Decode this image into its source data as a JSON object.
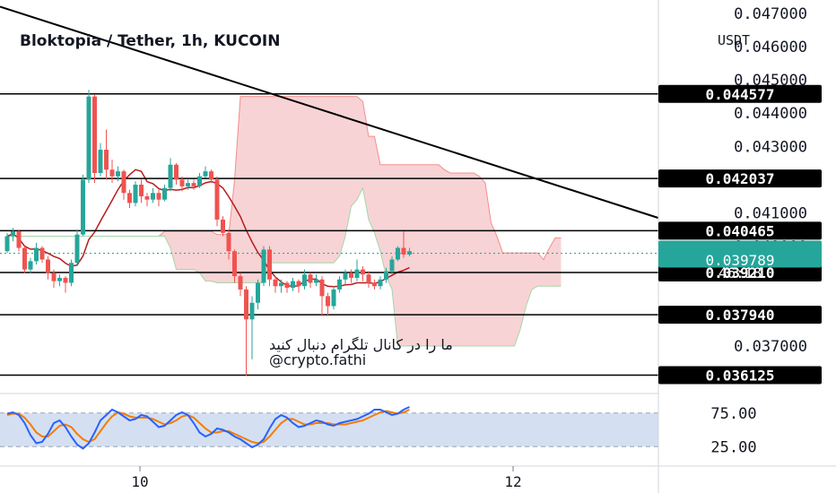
{
  "chart_data": {
    "type": "candlestick",
    "title": "Bloktopia / Tether, 1h, KUCOIN",
    "currency": "USDT",
    "y_ticks": [
      "0.047000",
      "0.046000",
      "0.045000",
      "0.044000",
      "0.043000",
      "0.041000",
      "0.040000",
      "0.037000"
    ],
    "ylim": [
      0.0356,
      0.0474
    ],
    "x_ticks": [
      "10",
      "12"
    ],
    "levels": [
      {
        "label": "0.044577",
        "value": 0.044577
      },
      {
        "label": "0.042037",
        "value": 0.042037
      },
      {
        "label": "0.040465",
        "value": 0.040465
      },
      {
        "label": "0.039210",
        "value": 0.03921
      },
      {
        "label": "0.037940",
        "value": 0.03794
      },
      {
        "label": "0.036125",
        "value": 0.036125
      }
    ],
    "current_price": {
      "label": "0.039789",
      "countdown": "46:18",
      "value": 0.039789
    },
    "trendline": {
      "from": 0.0472,
      "to": 0.04085
    },
    "candles": [
      [
        0.03985,
        0.0403,
        0.0404,
        0.0398
      ],
      [
        0.0403,
        0.04045,
        0.04055,
        0.04015
      ],
      [
        0.04045,
        0.03995,
        0.0405,
        0.03985
      ],
      [
        0.03995,
        0.0393,
        0.04,
        0.0392
      ],
      [
        0.0393,
        0.03955,
        0.03965,
        0.0392
      ],
      [
        0.03955,
        0.03995,
        0.0401,
        0.03945
      ],
      [
        0.03995,
        0.0396,
        0.04,
        0.0395
      ],
      [
        0.0396,
        0.0392,
        0.0397,
        0.039
      ],
      [
        0.0392,
        0.03895,
        0.0393,
        0.03875
      ],
      [
        0.03895,
        0.03905,
        0.03915,
        0.0388
      ],
      [
        0.03905,
        0.0389,
        0.0391,
        0.0386
      ],
      [
        0.0389,
        0.0395,
        0.0396,
        0.0388
      ],
      [
        0.0395,
        0.04035,
        0.0405,
        0.0394
      ],
      [
        0.04035,
        0.042,
        0.04215,
        0.0403
      ],
      [
        0.042,
        0.0445,
        0.0447,
        0.0419
      ],
      [
        0.0445,
        0.0422,
        0.04455,
        0.0419
      ],
      [
        0.0422,
        0.0429,
        0.0431,
        0.0421
      ],
      [
        0.0429,
        0.0423,
        0.0435,
        0.042
      ],
      [
        0.0423,
        0.0421,
        0.0426,
        0.0419
      ],
      [
        0.0421,
        0.04225,
        0.0424,
        0.04195
      ],
      [
        0.04225,
        0.0416,
        0.0423,
        0.0414
      ],
      [
        0.0416,
        0.0413,
        0.0417,
        0.04115
      ],
      [
        0.0413,
        0.04185,
        0.04195,
        0.0412
      ],
      [
        0.04185,
        0.0415,
        0.042,
        0.0413
      ],
      [
        0.0415,
        0.0414,
        0.0416,
        0.0412
      ],
      [
        0.0414,
        0.0416,
        0.04175,
        0.0413
      ],
      [
        0.0416,
        0.0414,
        0.0417,
        0.0412
      ],
      [
        0.0414,
        0.04175,
        0.04185,
        0.04135
      ],
      [
        0.04175,
        0.04245,
        0.04265,
        0.04165
      ],
      [
        0.04245,
        0.042,
        0.0425,
        0.04185
      ],
      [
        0.042,
        0.0418,
        0.0421,
        0.04165
      ],
      [
        0.0418,
        0.0419,
        0.042,
        0.0417
      ],
      [
        0.0419,
        0.0418,
        0.042,
        0.0417
      ],
      [
        0.0418,
        0.0421,
        0.0422,
        0.04175
      ],
      [
        0.0421,
        0.04225,
        0.0424,
        0.04205
      ],
      [
        0.04225,
        0.042,
        0.0423,
        0.0419
      ],
      [
        0.042,
        0.0408,
        0.0421,
        0.0406
      ],
      [
        0.0408,
        0.0404,
        0.0409,
        0.0403
      ],
      [
        0.0404,
        0.03985,
        0.0405,
        0.0396
      ],
      [
        0.03985,
        0.0391,
        0.0399,
        0.0389
      ],
      [
        0.0391,
        0.0387,
        0.0392,
        0.0385
      ],
      [
        0.0387,
        0.0378,
        0.0388,
        0.0361
      ],
      [
        0.0378,
        0.0383,
        0.0385,
        0.0366
      ],
      [
        0.0383,
        0.0389,
        0.039,
        0.0381
      ],
      [
        0.0389,
        0.0399,
        0.04,
        0.0388
      ],
      [
        0.0399,
        0.039,
        0.04,
        0.0388
      ],
      [
        0.039,
        0.0388,
        0.0391,
        0.0386
      ],
      [
        0.0388,
        0.0389,
        0.039,
        0.0386
      ],
      [
        0.0389,
        0.03875,
        0.03895,
        0.0386
      ],
      [
        0.03875,
        0.03895,
        0.03905,
        0.03865
      ],
      [
        0.03895,
        0.0388,
        0.039,
        0.0386
      ],
      [
        0.0388,
        0.03915,
        0.0393,
        0.0387
      ],
      [
        0.03915,
        0.0389,
        0.0392,
        0.03875
      ],
      [
        0.0389,
        0.039,
        0.03915,
        0.0388
      ],
      [
        0.039,
        0.0385,
        0.0391,
        0.0379
      ],
      [
        0.0385,
        0.0382,
        0.0386,
        0.0379
      ],
      [
        0.0382,
        0.0387,
        0.0388,
        0.0381
      ],
      [
        0.0387,
        0.039,
        0.0391,
        0.0386
      ],
      [
        0.039,
        0.0392,
        0.0393,
        0.03885
      ],
      [
        0.0392,
        0.03905,
        0.0393,
        0.0389
      ],
      [
        0.03905,
        0.0393,
        0.0396,
        0.03895
      ],
      [
        0.0393,
        0.03915,
        0.0394,
        0.03895
      ],
      [
        0.03915,
        0.0389,
        0.03925,
        0.03875
      ],
      [
        0.0389,
        0.0388,
        0.039,
        0.0387
      ],
      [
        0.0388,
        0.039,
        0.0391,
        0.0387
      ],
      [
        0.039,
        0.03925,
        0.03935,
        0.0389
      ],
      [
        0.03925,
        0.0396,
        0.0397,
        0.03915
      ],
      [
        0.0396,
        0.03995,
        0.04,
        0.03955
      ],
      [
        0.03995,
        0.03975,
        0.04045,
        0.03965
      ],
      [
        0.03975,
        0.03985,
        0.03995,
        0.0397
      ]
    ],
    "rsi": {
      "ticks": [
        "75.00",
        "25.00"
      ],
      "ylim": [
        0,
        100
      ],
      "k": [
        74,
        76,
        72,
        60,
        42,
        30,
        32,
        44,
        60,
        64,
        54,
        40,
        28,
        22,
        30,
        46,
        64,
        72,
        80,
        76,
        70,
        64,
        66,
        72,
        70,
        62,
        54,
        56,
        64,
        72,
        76,
        72,
        60,
        46,
        40,
        44,
        52,
        50,
        46,
        40,
        36,
        30,
        24,
        28,
        36,
        52,
        66,
        72,
        68,
        60,
        54,
        56,
        60,
        64,
        62,
        58,
        56,
        60,
        62,
        64,
        66,
        70,
        74,
        80,
        80,
        76,
        72,
        74,
        80,
        84
      ],
      "d": [
        72,
        74,
        74,
        68,
        58,
        46,
        40,
        40,
        48,
        56,
        58,
        54,
        44,
        36,
        32,
        36,
        48,
        60,
        70,
        76,
        74,
        70,
        68,
        68,
        68,
        66,
        62,
        58,
        60,
        64,
        70,
        72,
        68,
        60,
        52,
        46,
        46,
        48,
        48,
        44,
        40,
        36,
        32,
        30,
        32,
        40,
        50,
        60,
        66,
        66,
        62,
        58,
        58,
        60,
        60,
        60,
        58,
        58,
        58,
        60,
        62,
        64,
        68,
        72,
        76,
        78,
        76,
        74,
        76,
        80
      ]
    },
    "annotation": [
      "ما را در کانال تلگرام دنبال کنید",
      "@crypto.fathi"
    ]
  },
  "colors": {
    "up": "#26a69a",
    "down": "#ef5350",
    "price_label": "#26a69a",
    "level_label": "#000000",
    "cloud": "#f5c4c7",
    "cloud_bull": "#a5d6a7",
    "baseline": "#b71c1c",
    "rsi_k": "#2962ff",
    "rsi_d": "#f57c00",
    "rsi_band": "#c9d8ee"
  }
}
